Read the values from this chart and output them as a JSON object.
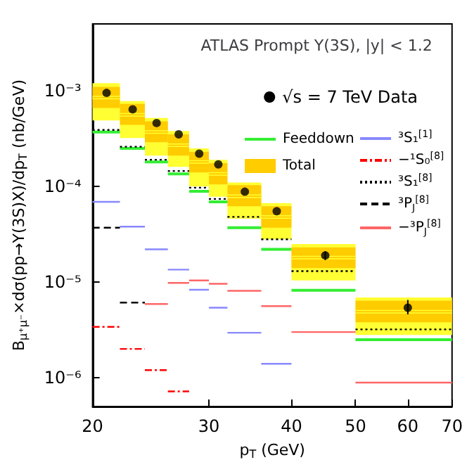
{
  "chart_data": {
    "type": "step",
    "title": "ATLAS Prompt Υ(3S), |y| < 1.2",
    "xlabel": "p$_{T}$ (GeV)",
    "ylabel": "B$_{μ⁺μ⁻}$×dσ(pp→Υ(3S)X)/dp$_{T}$ (nb/GeV)",
    "log": "xy",
    "grid": false,
    "legend": "top right",
    "xlim": [
      20,
      70
    ],
    "xticks": [
      20,
      30,
      40,
      50,
      60,
      70
    ],
    "ylim": [
      5e-07,
      0.005
    ],
    "yticks": [
      {
        "value": 1e-06,
        "label": "10⁻⁶"
      },
      {
        "value": 1e-05,
        "label": "10⁻⁵"
      },
      {
        "value": 0.0001,
        "label": "10⁻⁴"
      },
      {
        "value": 0.001,
        "label": "10⁻³"
      }
    ],
    "x": [
      20,
      22,
      24,
      26,
      28,
      30,
      32,
      36,
      40,
      50,
      70
    ],
    "series": [
      {
        "color": "#ffff33",
        "line_style": "solid",
        "values": [
          0.00085,
          0.00056,
          0.00037,
          0.00027,
          0.00018,
          0.000135,
          7.9e-05,
          4.8e-05,
          1.8e-05,
          4.9e-06,
          4.9e-06
        ],
        "lower": [
          0.00049,
          0.00032,
          0.00021,
          0.00016,
          0.0001,
          7.8e-05,
          4.6e-05,
          2.8e-05,
          1.04e-05,
          2.8e-06,
          2.8e-06
        ],
        "upper": [
          0.0012,
          0.00078,
          0.00052,
          0.00038,
          0.00025,
          0.00019,
          0.00011,
          6.7e-05,
          2.5e-05,
          6.9e-06,
          6.9e-06
        ]
      },
      {
        "name": "Feeddown",
        "color": "#33ee33",
        "line_style": "solid",
        "values": [
          0.00037,
          0.00025,
          0.00018,
          0.000135,
          8.9e-05,
          6.9e-05,
          3.7e-05,
          2.2e-05,
          8.2e-06,
          2.5e-06,
          2.5e-06
        ]
      },
      {
        "name": "Total",
        "color": "#ffcc00",
        "line_style": "solid",
        "values": [
          0.00085,
          0.00056,
          0.00037,
          0.00027,
          0.00018,
          0.000135,
          7.9e-05,
          4.8e-05,
          1.8e-05,
          4.9e-06,
          4.9e-06
        ],
        "lower": [
          0.00066,
          0.00044,
          0.00029,
          0.00021,
          0.00014,
          0.000105,
          6.2e-05,
          3.7e-05,
          1.4e-05,
          3.8e-06,
          3.8e-06
        ],
        "upper": [
          0.0011,
          0.00073,
          0.00048,
          0.00035,
          0.00023,
          0.000175,
          0.000103,
          6.2e-05,
          2.3e-05,
          6.4e-06,
          6.4e-06
        ]
      },
      {
        "name": "³S₁$^{[1]}$",
        "color": "#8888ff",
        "line_style": "solid",
        "x": [
          20,
          22,
          24,
          26,
          28,
          30,
          32,
          36,
          40
        ],
        "values": [
          6.9e-05,
          3.8e-05,
          2.2e-05,
          1.35e-05,
          8.3e-06,
          5.4e-06,
          2.95e-06,
          1.4e-06,
          1.4e-06
        ]
      },
      {
        "name": "−¹S₀$^{[8]}$",
        "color": "#ff0000",
        "line_style": "dashdot",
        "x": [
          20,
          22,
          24,
          26,
          28
        ],
        "values": [
          3.4e-06,
          2e-06,
          1.2e-06,
          7.2e-07,
          7.2e-07
        ]
      },
      {
        "name": "³S₁$^{[8]}$",
        "color": "#000000",
        "line_style": "dotted",
        "values": [
          0.00039,
          0.00026,
          0.00019,
          0.000145,
          9.7e-05,
          7.4e-05,
          4.8e-05,
          2.8e-05,
          1.3e-05,
          3.2e-06,
          3.2e-06
        ]
      },
      {
        "name": "³P$_{J}$$^{[8]}$",
        "color": "#000000",
        "line_style": "dashed",
        "x": [
          20,
          22,
          24
        ],
        "values": [
          3.7e-05,
          6.1e-06,
          6.1e-06
        ]
      },
      {
        "name": "−³P$_{J}$$^{[8]}$",
        "color": "#ff6666",
        "line_style": "solid",
        "x": [
          24,
          26,
          28,
          30,
          32,
          36,
          40,
          50,
          70
        ],
        "values": [
          5.9e-06,
          9.8e-06,
          1.04e-05,
          9.6e-06,
          8.1e-06,
          5.6e-06,
          3e-06,
          8.9e-07,
          8.9e-07
        ]
      },
      {
        "type": "scatter",
        "name": "√s = 7 TeV Data",
        "color": "#000000",
        "marker": "circle",
        "x": [
          21,
          23,
          25,
          27,
          29,
          31,
          34,
          38,
          45,
          60
        ],
        "values": [
          0.00095,
          0.00064,
          0.00046,
          0.00035,
          0.00022,
          0.00017,
          8.8e-05,
          5.5e-05,
          1.9e-05,
          5.4e-06
        ],
        "errors": [
          null,
          null,
          null,
          null,
          null,
          null,
          null,
          null,
          [
            1.7e-05,
            2.1e-05
          ],
          [
            4.6e-06,
            6.5e-06
          ]
        ]
      }
    ]
  }
}
